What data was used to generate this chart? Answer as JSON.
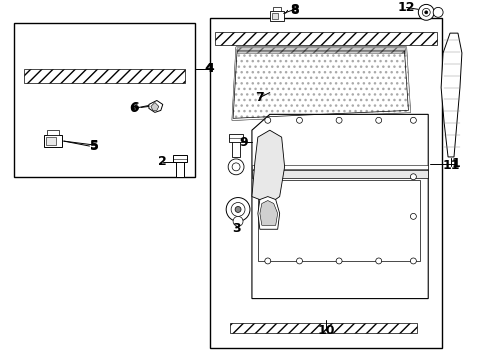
{
  "bg_color": "#ffffff",
  "fig_width": 4.89,
  "fig_height": 3.6,
  "dpi": 100,
  "line_color": "#000000",
  "text_color": "#000000",
  "font_size": 9
}
